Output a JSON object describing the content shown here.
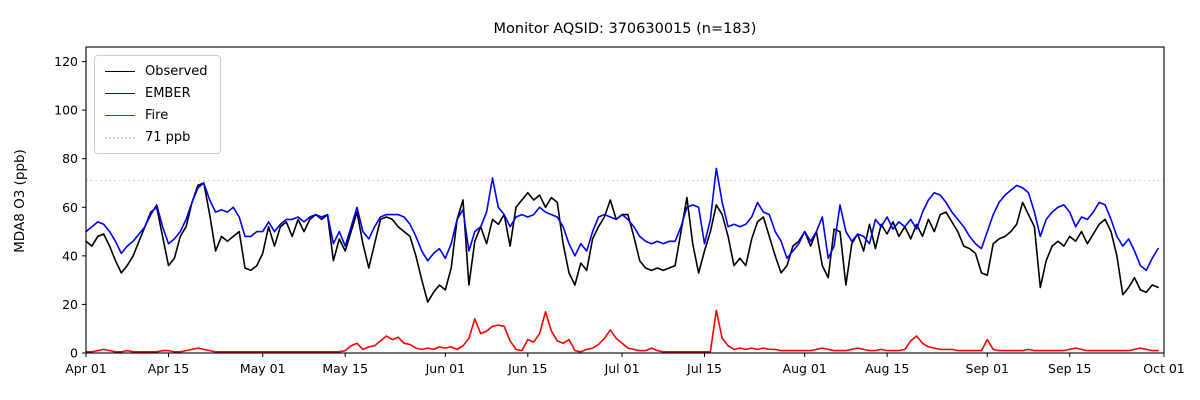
{
  "figure": {
    "title": "Monitor AQSID: 370630015 (n=183)",
    "ylabel": "MDA8 O3 (ppb)"
  },
  "chart_data": {
    "type": "line",
    "title": "Monitor AQSID: 370630015 (n=183)",
    "xlabel": "",
    "ylabel": "MDA8 O3 (ppb)",
    "grid": false,
    "legend_position": "upper-left",
    "n_points": 183,
    "x_unit": "daily values, day index 0 = Apr 01, last point Sep 30; x axis spans Apr 01 - Oct 01",
    "xlim_days": [
      0,
      183
    ],
    "ylim": [
      0,
      126
    ],
    "yticks": [
      0,
      20,
      40,
      60,
      80,
      100,
      120
    ],
    "xticks": [
      {
        "day": 0,
        "label": "Apr 01"
      },
      {
        "day": 14,
        "label": "Apr 15"
      },
      {
        "day": 30,
        "label": "May 01"
      },
      {
        "day": 44,
        "label": "May 15"
      },
      {
        "day": 61,
        "label": "Jun 01"
      },
      {
        "day": 75,
        "label": "Jun 15"
      },
      {
        "day": 91,
        "label": "Jul 01"
      },
      {
        "day": 105,
        "label": "Jul 15"
      },
      {
        "day": 122,
        "label": "Aug 01"
      },
      {
        "day": 136,
        "label": "Aug 15"
      },
      {
        "day": 153,
        "label": "Sep 01"
      },
      {
        "day": 167,
        "label": "Sep 15"
      },
      {
        "day": 183,
        "label": "Oct 01"
      }
    ],
    "threshold": {
      "value": 71,
      "label": "71 ppb",
      "color": "#d3d3d3",
      "style": "dotted"
    },
    "series": [
      {
        "name": "Observed",
        "color": "#000000",
        "values": [
          46,
          44,
          48,
          49,
          44,
          38,
          33,
          36,
          40,
          46,
          52,
          58,
          60,
          48,
          36,
          39,
          48,
          52,
          62,
          69,
          70,
          57,
          42,
          48,
          46,
          48,
          50,
          35,
          34,
          36,
          41,
          52,
          44,
          52,
          54,
          48,
          55,
          50,
          55,
          57,
          55,
          57,
          38,
          47,
          42,
          50,
          58,
          45,
          35,
          45,
          55,
          56,
          55,
          52,
          50,
          48,
          40,
          30,
          21,
          25,
          28,
          26,
          35,
          55,
          63,
          28,
          46,
          52,
          45,
          55,
          53,
          57,
          44,
          60,
          63,
          66,
          63,
          65,
          60,
          64,
          62,
          45,
          33,
          28,
          37,
          34,
          47,
          52,
          56,
          63,
          55,
          57,
          57,
          48,
          38,
          35,
          34,
          35,
          34,
          35,
          36,
          50,
          64,
          45,
          33,
          42,
          50,
          61,
          57,
          48,
          36,
          39,
          36,
          47,
          54,
          56,
          48,
          40,
          33,
          36,
          44,
          46,
          50,
          44,
          50,
          36,
          31,
          51,
          50,
          28,
          45,
          49,
          42,
          53,
          43,
          53,
          49,
          54,
          48,
          52,
          47,
          53,
          48,
          55,
          50,
          57,
          58,
          54,
          50,
          44,
          43,
          41,
          33,
          32,
          45,
          47,
          48,
          50,
          53,
          62,
          57,
          52,
          27,
          38,
          44,
          46,
          44,
          48,
          46,
          50,
          45,
          49,
          53,
          55,
          50,
          40,
          24,
          27,
          31,
          26,
          25,
          28,
          27
        ]
      },
      {
        "name": "EMBER",
        "color": "#0000ff",
        "values": [
          50,
          52,
          54,
          53,
          50,
          46,
          41,
          44,
          46,
          49,
          52,
          57,
          61,
          52,
          45,
          47,
          50,
          55,
          62,
          68,
          70,
          63,
          58,
          59,
          58,
          60,
          56,
          48,
          48,
          50,
          50,
          54,
          50,
          53,
          55,
          55,
          56,
          54,
          56,
          57,
          56,
          57,
          45,
          50,
          44,
          52,
          60,
          50,
          47,
          52,
          56,
          57,
          57,
          57,
          56,
          53,
          48,
          42,
          38,
          41,
          43,
          39,
          45,
          55,
          59,
          42,
          50,
          52,
          58,
          72,
          60,
          57,
          52,
          56,
          57,
          56,
          57,
          60,
          58,
          57,
          56,
          52,
          45,
          40,
          45,
          42,
          50,
          56,
          57,
          56,
          55,
          57,
          55,
          52,
          48,
          46,
          45,
          46,
          45,
          46,
          46,
          52,
          60,
          61,
          60,
          45,
          55,
          76,
          62,
          52,
          53,
          52,
          53,
          56,
          62,
          58,
          57,
          50,
          46,
          39,
          42,
          45,
          50,
          46,
          50,
          56,
          39,
          44,
          61,
          50,
          46,
          49,
          48,
          45,
          55,
          52,
          56,
          51,
          54,
          52,
          55,
          51,
          58,
          63,
          66,
          65,
          62,
          58,
          55,
          52,
          48,
          45,
          43,
          50,
          57,
          62,
          65,
          67,
          69,
          68,
          66,
          58,
          48,
          55,
          58,
          60,
          61,
          58,
          52,
          56,
          55,
          58,
          62,
          61,
          55,
          48,
          44,
          47,
          42,
          36,
          34,
          39,
          43
        ]
      },
      {
        "name": "Fire",
        "color": "#ff0000",
        "values": [
          0.5,
          0.5,
          1,
          1.5,
          1,
          0.5,
          0.5,
          1,
          0.5,
          0.5,
          0.5,
          0.5,
          0.5,
          1,
          1,
          0.5,
          0.5,
          1,
          1.5,
          2,
          1.5,
          1,
          0.5,
          0.5,
          0.5,
          0.5,
          0.5,
          0.5,
          0.5,
          0.5,
          0.5,
          0.5,
          0.5,
          0.5,
          0.5,
          0.5,
          0.5,
          0.5,
          0.5,
          0.5,
          0.5,
          0.5,
          0.5,
          0.5,
          1,
          3,
          4,
          1.5,
          2.5,
          3,
          5,
          7,
          5.5,
          6.5,
          4,
          3.5,
          2,
          1.5,
          2,
          1.5,
          2.5,
          2,
          2.5,
          1.5,
          3,
          6,
          14,
          8,
          9,
          11,
          11.5,
          11,
          5,
          1.5,
          1,
          5.5,
          4.5,
          8,
          17,
          9,
          5,
          4,
          5.5,
          1,
          0.5,
          1.5,
          2,
          3.5,
          6,
          9.5,
          6,
          4,
          2,
          1.5,
          1,
          1,
          2,
          1,
          0.5,
          0.5,
          0.5,
          0.5,
          0.5,
          0.5,
          0.5,
          0.5,
          0.5,
          17.5,
          6,
          3,
          1.5,
          2,
          1.5,
          2,
          1.5,
          2,
          1.5,
          1.5,
          1,
          1,
          1,
          1,
          1,
          1,
          1.5,
          2,
          1.5,
          1,
          1,
          1,
          1.5,
          2,
          1.5,
          1,
          1,
          1.5,
          1,
          1,
          1,
          1.5,
          5,
          7,
          4,
          2.5,
          2,
          1.5,
          1.5,
          1.5,
          1,
          1,
          1,
          1,
          1,
          5.5,
          1.5,
          1,
          1,
          1,
          1,
          1,
          1.5,
          1,
          1,
          1,
          1,
          1,
          1,
          1.5,
          2,
          1.5,
          1,
          1,
          1,
          1,
          1,
          1,
          1,
          1,
          1.5,
          2,
          1.5,
          1,
          1
        ]
      }
    ]
  }
}
